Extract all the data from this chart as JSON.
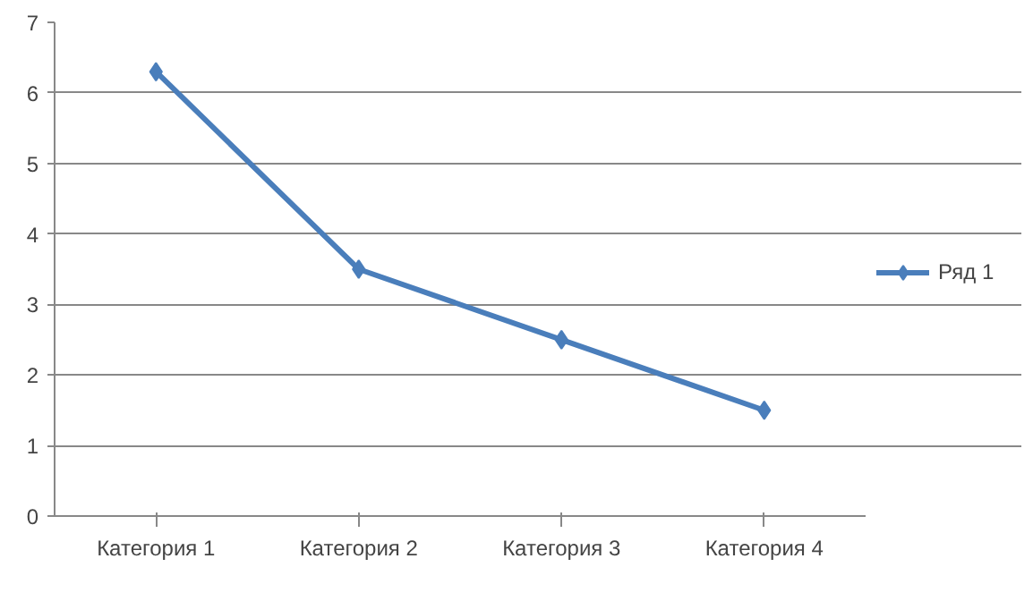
{
  "chart_data": {
    "type": "line",
    "categories": [
      "Категория 1",
      "Категория 2",
      "Категория 3",
      "Категория 4"
    ],
    "series": [
      {
        "name": "Ряд 1",
        "color": "#4a7ebb",
        "values": [
          6.3,
          3.5,
          2.5,
          1.5
        ]
      }
    ],
    "ylim": [
      0,
      7
    ],
    "yticks": [
      0,
      1,
      2,
      3,
      4,
      5,
      6,
      7
    ],
    "grid": "y",
    "legend": "right",
    "marker": "diamond",
    "line_style": "solid"
  }
}
